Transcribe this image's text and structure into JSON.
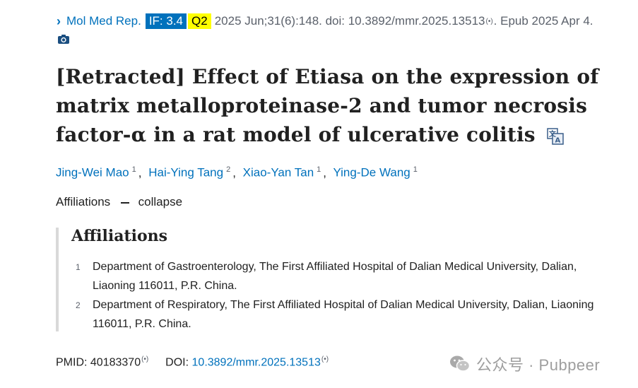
{
  "citation": {
    "journal": "Mol Med Rep.",
    "if_badge": "IF: 3.4",
    "quartile": "Q2",
    "rest": "2025 Jun;31(6):148. doi: 10.3892/mmr.2025.13513",
    "epub": ". Epub 2025 Apr 4.",
    "colors": {
      "link": "#0071bc",
      "if_bg": "#0071bc",
      "q_bg": "#ffff00"
    }
  },
  "article": {
    "title": "[Retracted] Effect of Etiasa on the expression of matrix metalloproteinase-2 and tumor necrosis factor-α in a rat model of ulcerative colitis"
  },
  "authors": [
    {
      "name": "Jing-Wei Mao",
      "aff": "1"
    },
    {
      "name": "Hai-Ying Tang",
      "aff": "2"
    },
    {
      "name": "Xiao-Yan Tan",
      "aff": "1"
    },
    {
      "name": "Ying-De Wang",
      "aff": "1"
    }
  ],
  "affiliations_toggle": {
    "label": "Affiliations",
    "action": "collapse"
  },
  "affiliations": {
    "heading": "Affiliations",
    "items": [
      {
        "num": "1",
        "text": "Department of Gastroenterology, The First Affiliated Hospital of Dalian Medical University, Dalian, Liaoning 116011, P.R. China."
      },
      {
        "num": "2",
        "text": "Department of Respiratory, The First Affiliated Hospital of Dalian Medical University, Dalian, Liaoning 116011, P.R. China."
      }
    ]
  },
  "identifiers": {
    "pmid_label": "PMID:",
    "pmid": "40183370",
    "doi_label": "DOI:",
    "doi": "10.3892/mmr.2025.13513"
  },
  "watermark": {
    "text": "公众号 · Pubpeer"
  },
  "icons": [
    "chevron-right-icon",
    "camera-icon",
    "translate-icon",
    "altmetric-icon",
    "wechat-icon"
  ]
}
